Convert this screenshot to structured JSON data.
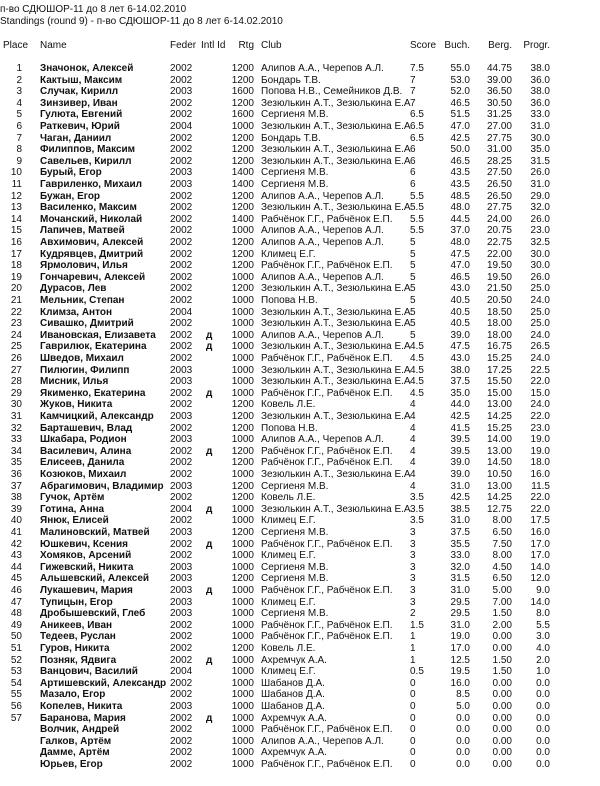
{
  "title": "п-во СДЮШОР-11 до 8 лет 6-14.02.2010",
  "subtitle": "Standings  (round 9) - п-во СДЮШОР-11 до 8 лет 6-14.02.2010",
  "headers": [
    "Place",
    "Name",
    "Feder",
    "Intl Id",
    "Rtg",
    "Club",
    "Score",
    "Buch.",
    "Berg.",
    "Progr."
  ],
  "rows": [
    [
      "1",
      "Значонок, Алексей",
      "2002",
      "",
      "1200",
      "Алипов А.А., Черепов А.Л.",
      "7.5",
      "55.0",
      "44.75",
      "38.0"
    ],
    [
      "2",
      "Кактыш, Максим",
      "2002",
      "",
      "1200",
      "Бондарь Т.В.",
      "7",
      "53.0",
      "39.00",
      "36.0"
    ],
    [
      "3",
      "Случак, Кирилл",
      "2003",
      "",
      "1600",
      "Попова Н.В., Семейников Д.В.",
      "7",
      "52.0",
      "36.50",
      "38.0"
    ],
    [
      "4",
      "Зинзивер, Иван",
      "2002",
      "",
      "1200",
      "Зезюлькин А.Т., Зезюлькина Е.А",
      "7",
      "46.5",
      "30.50",
      "36.0"
    ],
    [
      "5",
      "Гулюта, Евгений",
      "2002",
      "",
      "1600",
      "Сергиеня М.В.",
      "6.5",
      "51.5",
      "31.25",
      "33.0"
    ],
    [
      "6",
      "Раткевич, Юрий",
      "2004",
      "",
      "1000",
      "Зезюлькин А.Т., Зезюлькина Е.А",
      "6.5",
      "47.0",
      "27.00",
      "31.0"
    ],
    [
      "7",
      "Чаган, Даниил",
      "2002",
      "",
      "1200",
      "Бондарь Т.В.",
      "6.5",
      "42.5",
      "27.75",
      "30.0"
    ],
    [
      "8",
      "Филиппов, Максим",
      "2002",
      "",
      "1200",
      "Зезюлькин А.Т., Зезюлькина Е.А",
      "6",
      "50.0",
      "31.00",
      "35.0"
    ],
    [
      "9",
      "Савельев, Кирилл",
      "2002",
      "",
      "1200",
      "Зезюлькин А.Т., Зезюлькина Е.А",
      "6",
      "46.5",
      "28.25",
      "31.5"
    ],
    [
      "10",
      "Бурый, Егор",
      "2003",
      "",
      "1400",
      "Сергиеня М.В.",
      "6",
      "43.5",
      "27.50",
      "26.0"
    ],
    [
      "11",
      "Гавриленко, Михаил",
      "2003",
      "",
      "1400",
      "Сергиеня М.В.",
      "6",
      "43.5",
      "26.50",
      "31.0"
    ],
    [
      "12",
      "Бужан, Егор",
      "2002",
      "",
      "1200",
      "Алипов А.А., Черепов А.Л.",
      "5.5",
      "48.5",
      "26.50",
      "29.0"
    ],
    [
      "13",
      "Василенко, Максим",
      "2002",
      "",
      "1200",
      "Зезюлькин А.Т., Зезюлькина Е.А",
      "5.5",
      "48.0",
      "27.75",
      "32.0"
    ],
    [
      "14",
      "Мочанский, Николай",
      "2002",
      "",
      "1400",
      "Рабчёнок Г.Г., Рабчёнок Е.П.",
      "5.5",
      "44.5",
      "24.00",
      "26.0"
    ],
    [
      "15",
      "Лапичев, Матвей",
      "2002",
      "",
      "1000",
      "Алипов А.А., Черепов А.Л.",
      "5.5",
      "37.0",
      "20.75",
      "23.0"
    ],
    [
      "16",
      "Авхимович, Алексей",
      "2002",
      "",
      "1200",
      "Алипов А.А., Черепов А.Л.",
      "5",
      "48.0",
      "22.75",
      "32.5"
    ],
    [
      "17",
      "Кудрявцев, Дмитрий",
      "2002",
      "",
      "1200",
      "Климец Е.Г.",
      "5",
      "47.5",
      "22.00",
      "30.0"
    ],
    [
      "18",
      "Ярмолович, Илья",
      "2002",
      "",
      "1200",
      "Рабчёнок Г.Г., Рабчёнок Е.П.",
      "5",
      "47.0",
      "19.50",
      "30.0"
    ],
    [
      "19",
      "Гончаревич, Алексей",
      "2002",
      "",
      "1000",
      "Алипов А.А., Черепов А.Л.",
      "5",
      "46.5",
      "19.50",
      "26.0"
    ],
    [
      "20",
      "Дурасов, Лев",
      "2002",
      "",
      "1200",
      "Зезюлькин А.Т., Зезюлькина Е.А",
      "5",
      "43.0",
      "21.50",
      "25.0"
    ],
    [
      "21",
      "Мельник, Степан",
      "2002",
      "",
      "1000",
      "Попова Н.В.",
      "5",
      "40.5",
      "20.50",
      "24.0"
    ],
    [
      "22",
      "Климза, Антон",
      "2004",
      "",
      "1000",
      "Зезюлькин А.Т., Зезюлькина Е.А",
      "5",
      "40.5",
      "18.50",
      "25.0"
    ],
    [
      "23",
      "Сивашко, Дмитрий",
      "2002",
      "",
      "1000",
      "Зезюлькин А.Т., Зезюлькина Е.А",
      "5",
      "40.5",
      "18.00",
      "25.0"
    ],
    [
      "24",
      "Ивановская, Елизавета",
      "2002",
      "д",
      "1000",
      "Алипов А.А., Черепов А.Л.",
      "5",
      "39.0",
      "18.00",
      "24.0"
    ],
    [
      "25",
      "Гаврилюк, Екатерина",
      "2002",
      "д",
      "1000",
      "Зезюлькин А.Т., Зезюлькина Е.А",
      "4.5",
      "47.5",
      "16.75",
      "26.5"
    ],
    [
      "26",
      "Шведов, Михаил",
      "2002",
      "",
      "1000",
      "Рабчёнок Г.Г., Рабчёнок Е.П.",
      "4.5",
      "43.0",
      "15.25",
      "24.0"
    ],
    [
      "27",
      "Пилюгин, Филипп",
      "2003",
      "",
      "1000",
      "Зезюлькин А.Т., Зезюлькина Е.А",
      "4.5",
      "38.0",
      "17.25",
      "22.5"
    ],
    [
      "28",
      "Мисник, Илья",
      "2003",
      "",
      "1000",
      "Зезюлькин А.Т., Зезюлькина Е.А",
      "4.5",
      "37.5",
      "15.50",
      "22.0"
    ],
    [
      "29",
      "Якименко, Екатерина",
      "2002",
      "д",
      "1000",
      "Рабчёнок Г.Г., Рабчёнок Е.П.",
      "4.5",
      "35.0",
      "15.00",
      "15.0"
    ],
    [
      "30",
      "Жуков, Никита",
      "2002",
      "",
      "1200",
      "Ковель Л.Е.",
      "4",
      "44.0",
      "13.00",
      "24.0"
    ],
    [
      "31",
      "Камчицкий, Александр",
      "2003",
      "",
      "1200",
      "Зезюлькин А.Т., Зезюлькина Е.А",
      "4",
      "42.5",
      "14.25",
      "22.0"
    ],
    [
      "32",
      "Барташевич, Влад",
      "2002",
      "",
      "1200",
      "Попова Н.В.",
      "4",
      "41.5",
      "15.25",
      "23.0"
    ],
    [
      "33",
      "Шкабара, Родион",
      "2003",
      "",
      "1000",
      "Алипов А.А., Черепов А.Л.",
      "4",
      "39.5",
      "14.00",
      "19.0"
    ],
    [
      "34",
      "Василевич, Алина",
      "2002",
      "д",
      "1200",
      "Рабчёнок Г.Г., Рабчёнок Е.П.",
      "4",
      "39.5",
      "13.00",
      "19.0"
    ],
    [
      "35",
      "Елисеев, Данила",
      "2002",
      "",
      "1200",
      "Рабчёнок Г.Г., Рабчёнок Е.П.",
      "4",
      "39.0",
      "14.50",
      "18.0"
    ],
    [
      "36",
      "Козюков, Михаил",
      "2002",
      "",
      "1000",
      "Зезюлькин А.Т., Зезюлькина Е.А",
      "4",
      "39.0",
      "10.50",
      "16.0"
    ],
    [
      "37",
      "Абрагимович, Владимир",
      "2003",
      "",
      "1200",
      "Сергиеня М.В.",
      "4",
      "31.0",
      "13.00",
      "11.5"
    ],
    [
      "38",
      "Гучок, Артём",
      "2002",
      "",
      "1200",
      "Ковель Л.Е.",
      "3.5",
      "42.5",
      "14.25",
      "22.0"
    ],
    [
      "39",
      "Готина, Анна",
      "2004",
      "д",
      "1000",
      "Зезюлькин А.Т., Зезюлькина Е.А",
      "3.5",
      "38.5",
      "12.75",
      "22.0"
    ],
    [
      "40",
      "Янюк, Елисей",
      "2002",
      "",
      "1000",
      "Климец Е.Г.",
      "3.5",
      "31.0",
      "8.00",
      "17.5"
    ],
    [
      "41",
      "Малиновский, Матвей",
      "2003",
      "",
      "1200",
      "Сергиеня М.В.",
      "3",
      "37.5",
      "6.50",
      "16.0"
    ],
    [
      "42",
      "Юшкевич, Ксения",
      "2002",
      "д",
      "1000",
      "Рабчёнок Г.Г., Рабчёнок Е.П.",
      "3",
      "35.5",
      "7.50",
      "17.0"
    ],
    [
      "43",
      "Хомяков, Арсений",
      "2002",
      "",
      "1000",
      "Климец Е.Г.",
      "3",
      "33.0",
      "8.00",
      "17.0"
    ],
    [
      "44",
      "Гижевский, Никита",
      "2003",
      "",
      "1000",
      "Сергиеня М.В.",
      "3",
      "32.0",
      "4.50",
      "14.0"
    ],
    [
      "45",
      "Альшевский, Алексей",
      "2003",
      "",
      "1200",
      "Сергиеня М.В.",
      "3",
      "31.5",
      "6.50",
      "12.0"
    ],
    [
      "46",
      "Лукашевич, Мария",
      "2003",
      "д",
      "1000",
      "Рабчёнок Г.Г., Рабчёнок Е.П.",
      "3",
      "31.0",
      "5.00",
      "9.0"
    ],
    [
      "47",
      "Тупицын, Егор",
      "2003",
      "",
      "1000",
      "Климец Е.Г.",
      "3",
      "29.5",
      "7.00",
      "14.0"
    ],
    [
      "48",
      "Дробышевский, Глеб",
      "2003",
      "",
      "1000",
      "Сергиеня М.В.",
      "2",
      "29.5",
      "1.50",
      "8.0"
    ],
    [
      "49",
      "Аникеев, Иван",
      "2002",
      "",
      "1000",
      "Рабчёнок Г.Г., Рабчёнок Е.П.",
      "1.5",
      "31.0",
      "2.00",
      "5.5"
    ],
    [
      "50",
      "Тедеев, Руслан",
      "2002",
      "",
      "1000",
      "Рабчёнок Г.Г., Рабчёнок Е.П.",
      "1",
      "19.0",
      "0.00",
      "3.0"
    ],
    [
      "51",
      "Гуров, Никита",
      "2002",
      "",
      "1200",
      "Ковель Л.Е.",
      "1",
      "17.0",
      "0.00",
      "4.0"
    ],
    [
      "52",
      "Позняк, Ядвига",
      "2002",
      "д",
      "1000",
      "Ахремчук А.А.",
      "1",
      "12.5",
      "1.50",
      "2.0"
    ],
    [
      "53",
      "Ванцович, Василий",
      "2004",
      "",
      "1000",
      "Климец Е.Г.",
      "0.5",
      "19.5",
      "1.50",
      "1.0"
    ],
    [
      "54",
      "Артишевский, Александр",
      "2002",
      "",
      "1000",
      "Шабанов Д.А.",
      "0",
      "16.0",
      "0.00",
      "0.0"
    ],
    [
      "55",
      "Мазало, Егор",
      "2002",
      "",
      "1000",
      "Шабанов Д.А.",
      "0",
      "8.5",
      "0.00",
      "0.0"
    ],
    [
      "56",
      "Копелев, Никита",
      "2003",
      "",
      "1000",
      "Шабанов Д.А.",
      "0",
      "5.0",
      "0.00",
      "0.0"
    ],
    [
      "57",
      "Баранова, Мария",
      "2002",
      "д",
      "1000",
      "Ахремчук А.А.",
      "0",
      "0.0",
      "0.00",
      "0.0"
    ],
    [
      "",
      "Волчик, Андрей",
      "2002",
      "",
      "1000",
      "Рабчёнок Г.Г., Рабчёнок Е.П.",
      "0",
      "0.0",
      "0.00",
      "0.0"
    ],
    [
      "",
      "Галков, Артём",
      "2002",
      "",
      "1000",
      "Алипов А.А., Черепов А.Л.",
      "0",
      "0.0",
      "0.00",
      "0.0"
    ],
    [
      "",
      "Дамме, Артём",
      "2002",
      "",
      "1000",
      "Ахремчук А.А.",
      "0",
      "0.0",
      "0.00",
      "0.0"
    ],
    [
      "",
      "Юрьев, Егор",
      "2002",
      "",
      "1000",
      "Рабчёнок Г.Г., Рабчёнок Е.П.",
      "0",
      "0.0",
      "0.00",
      "0.0"
    ]
  ]
}
